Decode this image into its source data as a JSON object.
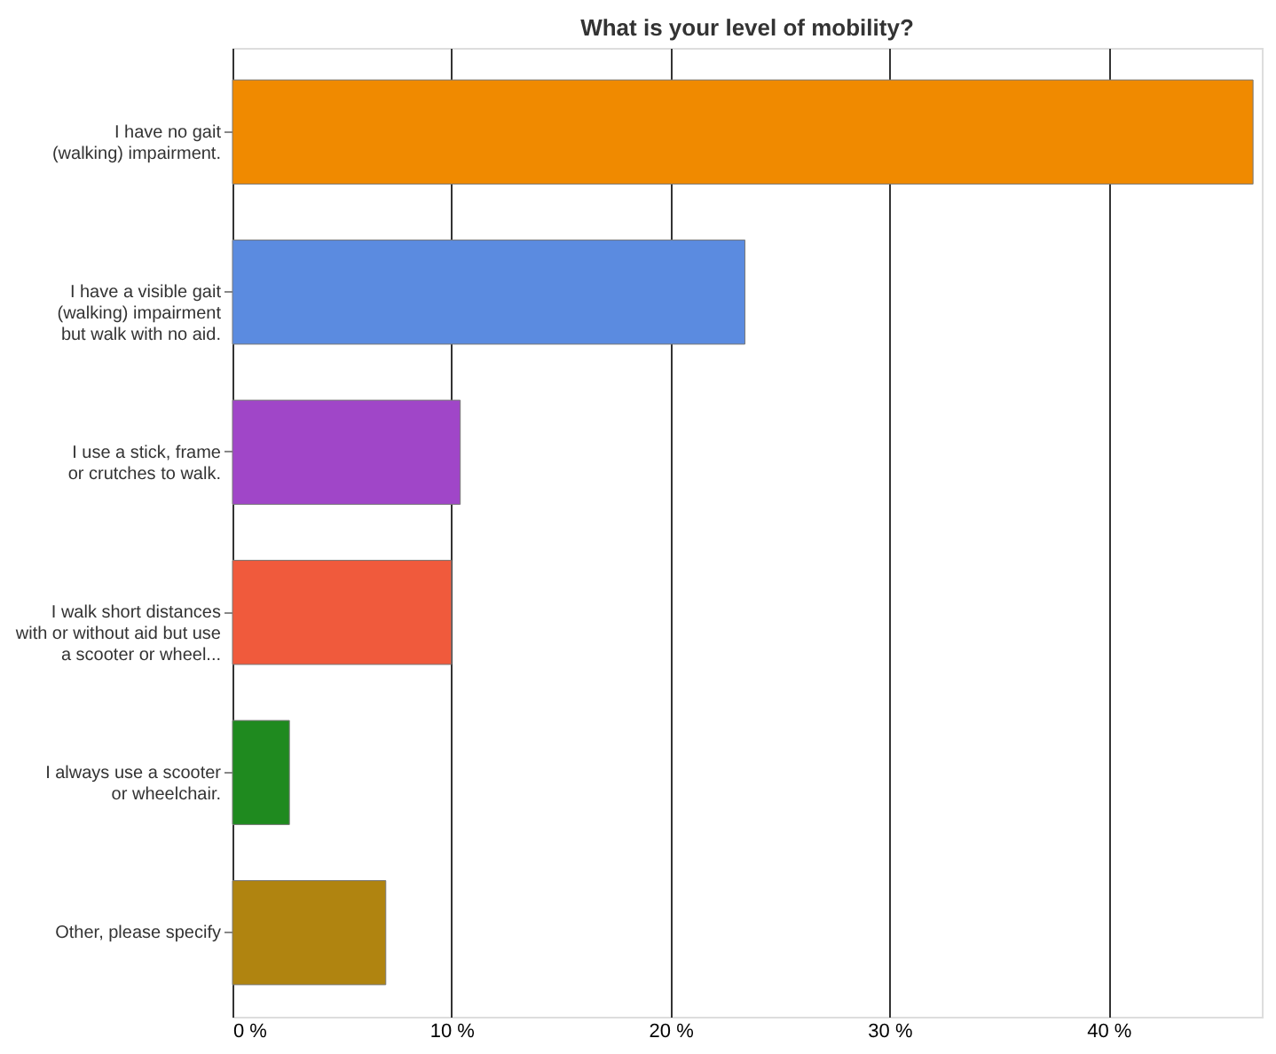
{
  "chart_data": {
    "type": "bar",
    "orientation": "horizontal",
    "title": "What is your level of mobility?",
    "categories": [
      "I have no gait\n(walking) impairment.",
      "I have a visible  gait\n(walking) impairment\nbut walk with no aid.",
      "I use a stick,  frame\nor crutches to walk.",
      "I walk short distances\nwith or without aid but  use\na scooter or wheel...",
      "I always use a scooter\nor wheelchair.",
      "Other, please specify"
    ],
    "values": [
      46.6,
      23.4,
      10.4,
      10.0,
      2.6,
      7.0
    ],
    "colors": [
      "#f08a00",
      "#5b8be0",
      "#a046c8",
      "#f05a3c",
      "#1f8a1f",
      "#b08410"
    ],
    "xlim": [
      0,
      47
    ],
    "xticks": [
      {
        "value": 0,
        "label": "0 %"
      },
      {
        "value": 10,
        "label": "10 %"
      },
      {
        "value": 20,
        "label": "20 %"
      },
      {
        "value": 30,
        "label": "30 %"
      },
      {
        "value": 40,
        "label": "40 %"
      }
    ],
    "grid": "x"
  }
}
